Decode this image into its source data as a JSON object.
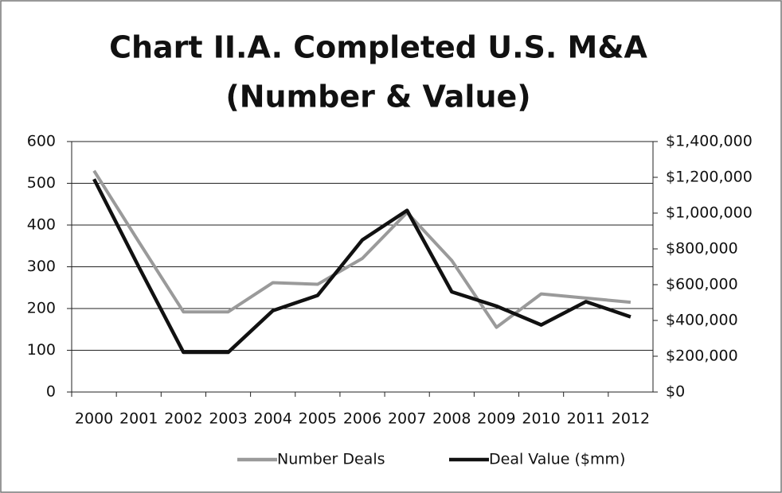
{
  "chart_data": {
    "type": "line",
    "title": [
      "Chart II.A. Completed U.S. M&A",
      "(Number & Value)"
    ],
    "categories": [
      "2000",
      "2001",
      "2002",
      "2003",
      "2004",
      "2005",
      "2006",
      "2007",
      "2008",
      "2009",
      "2010",
      "2011",
      "2012"
    ],
    "series": [
      {
        "name": "Number Deals",
        "color": "#9a9a9a",
        "values": [
          530,
          360,
          192,
          192,
          262,
          258,
          320,
          430,
          315,
          155,
          235,
          225,
          215
        ]
      },
      {
        "name": "Deal Value ($mm)",
        "color": "#111111",
        "axis": "y2",
        "values": [
          1190000,
          700000,
          222000,
          222000,
          455000,
          540000,
          850000,
          1015000,
          560000,
          480000,
          375000,
          505000,
          420000
        ]
      }
    ],
    "ylim": [
      0,
      600
    ],
    "yticks": [
      0,
      100,
      200,
      300,
      400,
      500,
      600
    ],
    "y2lim": [
      0,
      1400000
    ],
    "y2ticks": [
      {
        "value": 0,
        "label": "$0"
      },
      {
        "value": 200000,
        "label": "$200,000"
      },
      {
        "value": 400000,
        "label": "$400,000"
      },
      {
        "value": 600000,
        "label": "$600,000"
      },
      {
        "value": 800000,
        "label": "$800,000"
      },
      {
        "value": 1000000,
        "label": "$1,000,000"
      },
      {
        "value": 1200000,
        "label": "$1,200,000"
      },
      {
        "value": 1400000,
        "label": "$1,400,000"
      }
    ],
    "grid": true,
    "legend": "bottom"
  }
}
